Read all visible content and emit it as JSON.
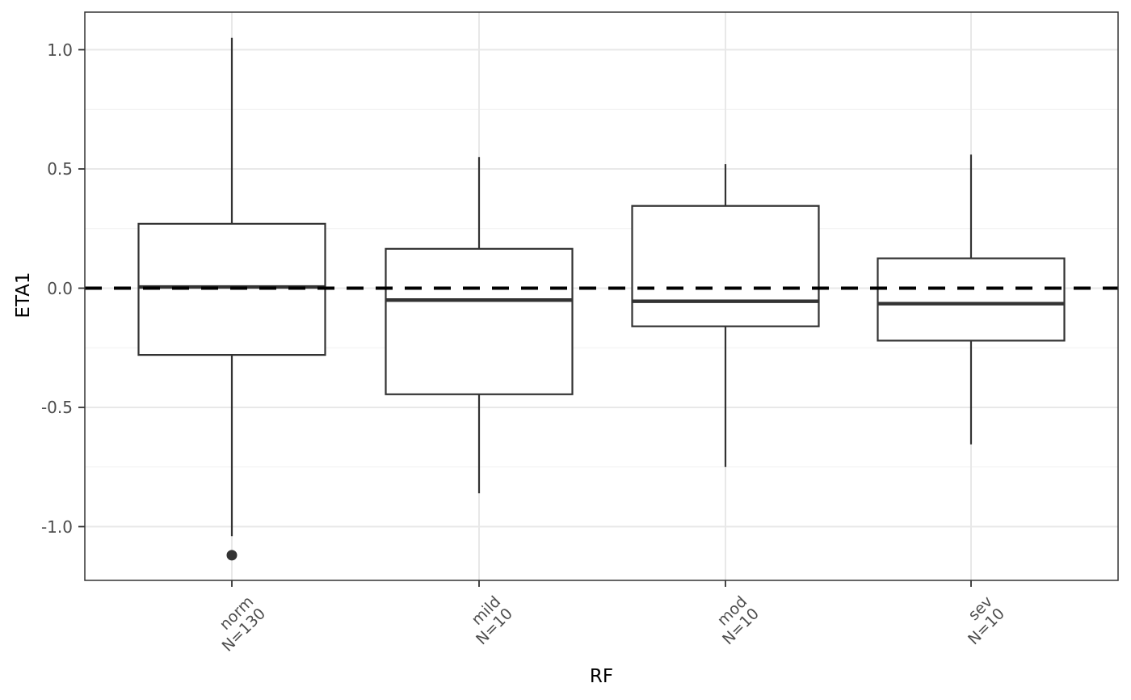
{
  "chart_data": {
    "type": "boxplot",
    "title": "",
    "xlabel": "RF",
    "ylabel": "ETA1",
    "ylim": [
      -1.225,
      1.158
    ],
    "grid": true,
    "y_major_ticks": [
      1.0,
      0.5,
      0.0,
      -0.5,
      -1.0
    ],
    "y_tick_labels": [
      "1.0",
      "0.5",
      "0.0",
      "-0.5",
      "-1.0"
    ],
    "y_minor_gridlines": [
      0.75,
      0.25,
      -0.25,
      -0.75
    ],
    "reference_line": {
      "y": 0.0,
      "style": "dashed",
      "color": "#000000"
    },
    "categories": [
      {
        "label": "norm",
        "n_label": "N=130",
        "median": 0.005,
        "q1": -0.28,
        "q3": 0.27,
        "whisker_low": -1.04,
        "whisker_high": 1.05,
        "outliers": [
          -1.12
        ]
      },
      {
        "label": "mild",
        "n_label": "N=10",
        "median": -0.05,
        "q1": -0.445,
        "q3": 0.165,
        "whisker_low": -0.86,
        "whisker_high": 0.55,
        "outliers": []
      },
      {
        "label": "mod",
        "n_label": "N=10",
        "median": -0.055,
        "q1": -0.16,
        "q3": 0.345,
        "whisker_low": -0.75,
        "whisker_high": 0.52,
        "outliers": []
      },
      {
        "label": "sev",
        "n_label": "N=10",
        "median": -0.065,
        "q1": -0.22,
        "q3": 0.125,
        "whisker_low": -0.655,
        "whisker_high": 0.56,
        "outliers": []
      }
    ],
    "colors": {
      "box_stroke": "#333333",
      "median": "#333333",
      "whisker": "#333333",
      "outlier": "#333333",
      "panel_border": "#333333",
      "grid_major": "#E8E8E8",
      "grid_minor": "#F1F1F1",
      "tick_mark": "#333333",
      "tick_label": "#4d4d4d",
      "axis_title": "#000000",
      "reference": "#000000",
      "panel_bg": "#ffffff"
    }
  }
}
